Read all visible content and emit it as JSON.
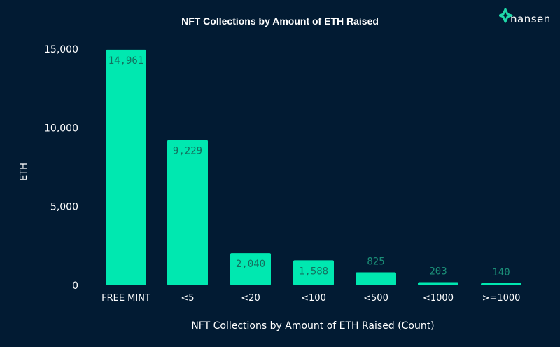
{
  "brand": {
    "logo_text": "nansen",
    "accent": "#00e8b0"
  },
  "chart_data": {
    "type": "bar",
    "title": "NFT Collections by Amount of ETH Raised",
    "xlabel": "NFT Collections by Amount of ETH Raised (Count)",
    "ylabel": "ETH",
    "categories": [
      "FREE MINT",
      "<5",
      "<20",
      "<100",
      "<500",
      "<1000",
      ">=1000"
    ],
    "values": [
      14961,
      9229,
      2040,
      1588,
      825,
      203,
      140
    ],
    "data_labels": [
      "14,961",
      "9,229",
      "2,040",
      "1,588",
      "825",
      "203",
      "140"
    ],
    "ylim": [
      0,
      15000
    ],
    "yticks": [
      0,
      5000,
      10000,
      15000
    ],
    "ytick_labels": [
      "0",
      "5,000",
      "10,000",
      "15,000"
    ],
    "grid": false,
    "colors": {
      "bar": "#00e8b0",
      "background": "#021b33",
      "label_inside": "#13705f",
      "label_outside": "#1b8f78",
      "text": "#ffffff"
    }
  }
}
